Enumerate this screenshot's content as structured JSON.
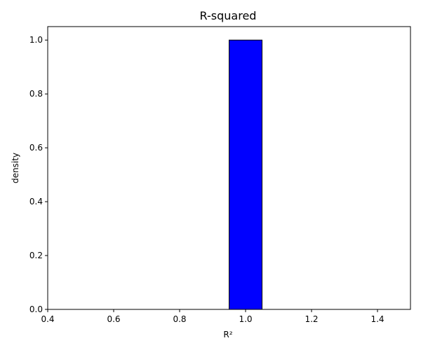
{
  "chart_data": {
    "type": "bar",
    "title": "R-squared",
    "xlabel": "R²",
    "ylabel": "density",
    "xlim": [
      0.4,
      1.5
    ],
    "ylim": [
      0,
      1.05
    ],
    "x_ticks": [
      0.4,
      0.6,
      0.8,
      1.0,
      1.2,
      1.4
    ],
    "x_tick_labels": [
      "0.4",
      "0.6",
      "0.8",
      "1.0",
      "1.2",
      "1.4"
    ],
    "y_ticks": [
      0.0,
      0.2,
      0.4,
      0.6,
      0.8,
      1.0
    ],
    "y_tick_labels": [
      "0.0",
      "0.2",
      "0.4",
      "0.6",
      "0.8",
      "1.0"
    ],
    "bins": [
      {
        "left": 0.45,
        "right": 0.55,
        "value": 0
      },
      {
        "left": 0.55,
        "right": 0.65,
        "value": 0
      },
      {
        "left": 0.65,
        "right": 0.75,
        "value": 0
      },
      {
        "left": 0.75,
        "right": 0.85,
        "value": 0
      },
      {
        "left": 0.85,
        "right": 0.95,
        "value": 0
      },
      {
        "left": 0.95,
        "right": 1.05,
        "value": 1.0
      },
      {
        "left": 1.05,
        "right": 1.15,
        "value": 0
      },
      {
        "left": 1.15,
        "right": 1.25,
        "value": 0
      },
      {
        "left": 1.25,
        "right": 1.35,
        "value": 0
      },
      {
        "left": 1.35,
        "right": 1.45,
        "value": 0
      }
    ],
    "bar_color": "#0000ff",
    "edge_color": "#000000",
    "grid": false,
    "legend": "none"
  }
}
